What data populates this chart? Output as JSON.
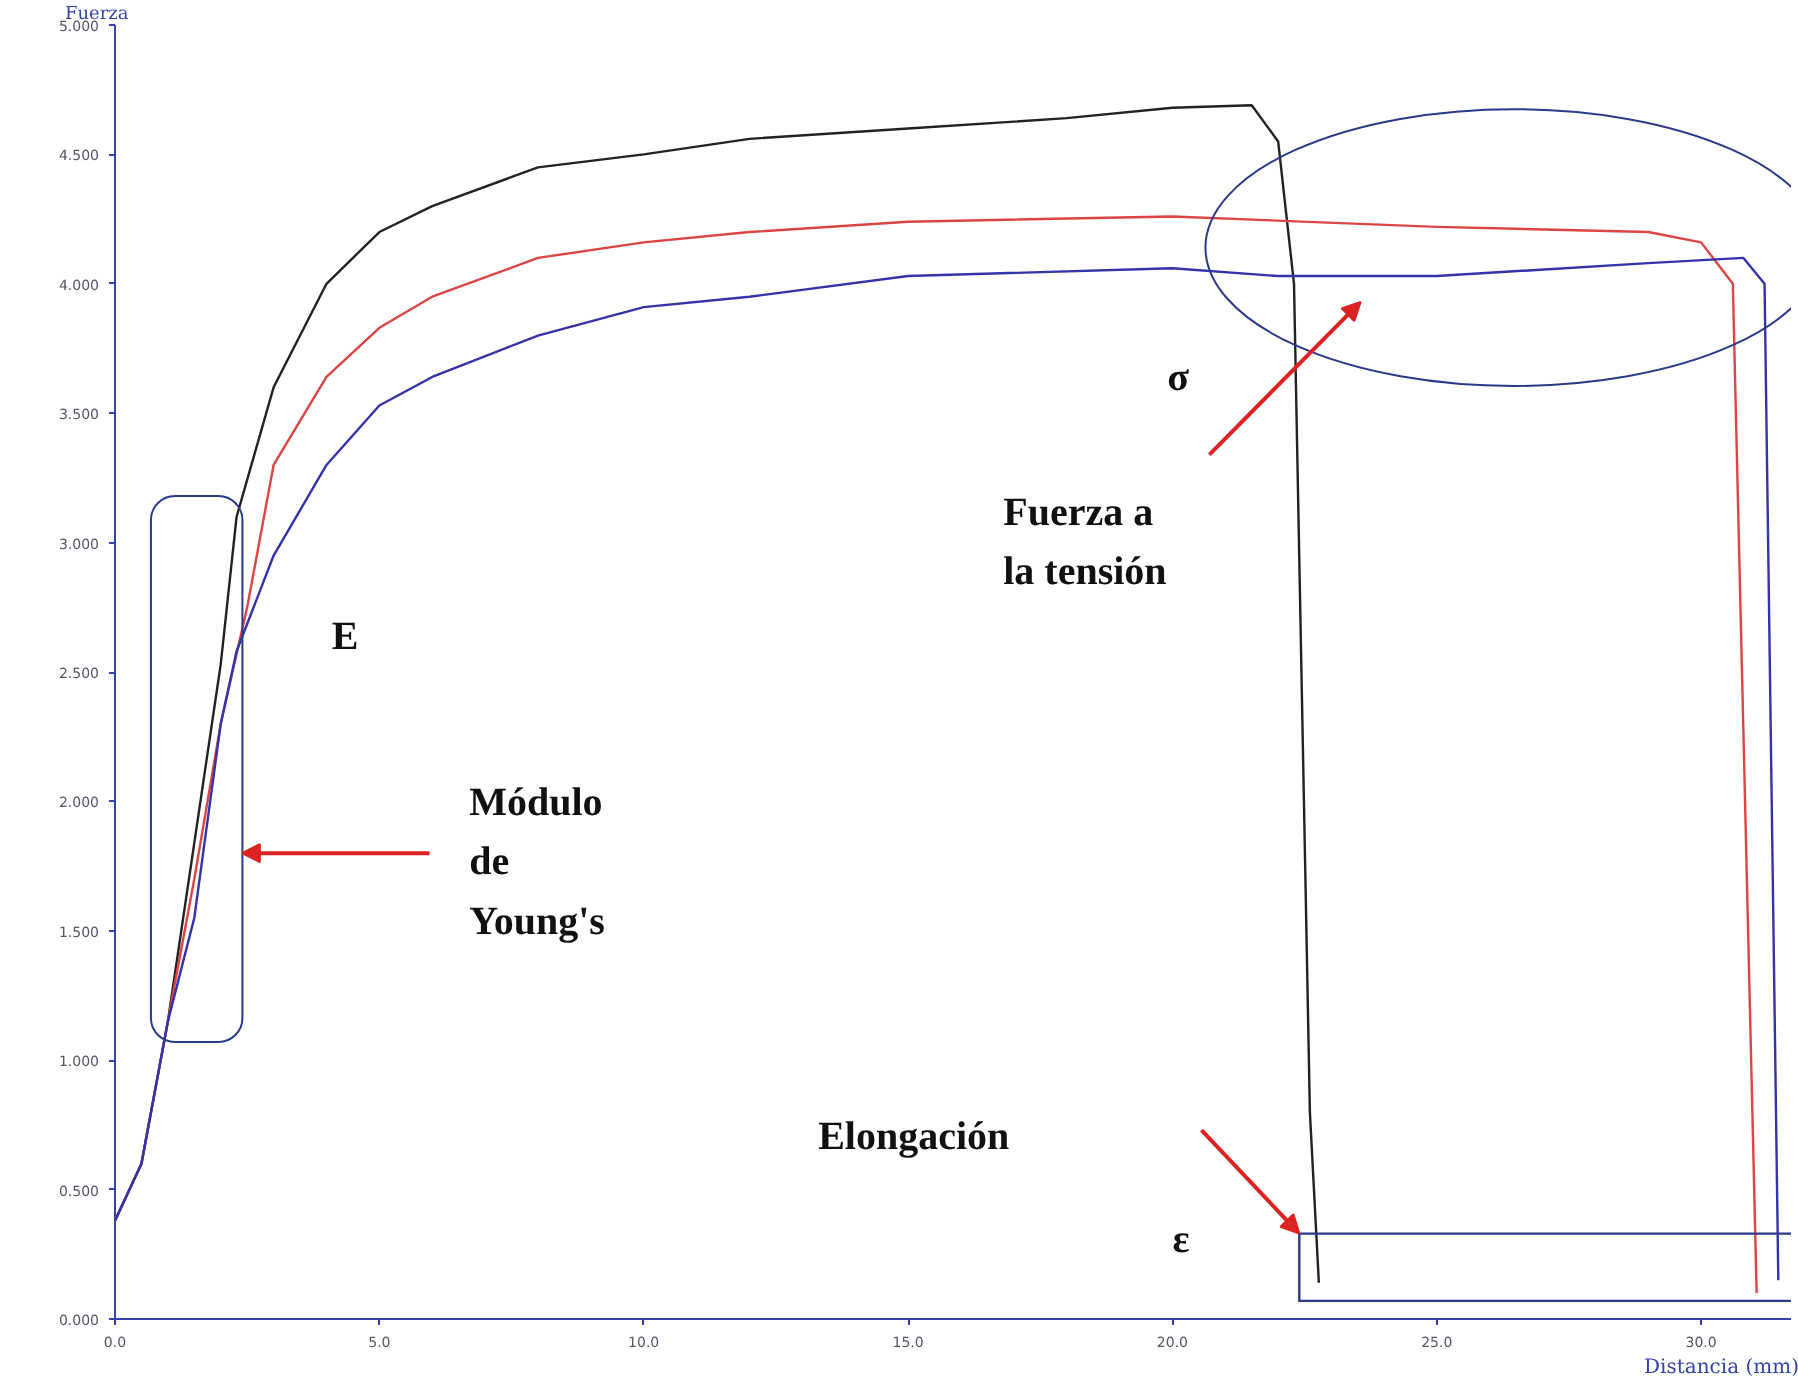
{
  "chart_data": {
    "type": "line",
    "xlabel": "Distancia (mm)",
    "ylabel": "Fuerza",
    "xlim": [
      0,
      31.7
    ],
    "ylim": [
      0,
      5
    ],
    "xticks": [
      {
        "value": 0,
        "label": "0.0"
      },
      {
        "value": 5,
        "label": "5.0"
      },
      {
        "value": 10,
        "label": "10.0"
      },
      {
        "value": 15,
        "label": "15.0"
      },
      {
        "value": 20,
        "label": "20.0"
      },
      {
        "value": 25,
        "label": "25.0"
      },
      {
        "value": 30,
        "label": "30.0"
      }
    ],
    "yticks": [
      {
        "value": 0,
        "label": "0.000"
      },
      {
        "value": 0.5,
        "label": "0.500"
      },
      {
        "value": 1,
        "label": "1.000"
      },
      {
        "value": 1.5,
        "label": "1.500"
      },
      {
        "value": 2,
        "label": "2.000"
      },
      {
        "value": 2.5,
        "label": "2.500"
      },
      {
        "value": 3,
        "label": "3.000"
      },
      {
        "value": 3.5,
        "label": "3.500"
      },
      {
        "value": 4,
        "label": "4.000"
      },
      {
        "value": 4.5,
        "label": "4.500"
      },
      {
        "value": 5,
        "label": "5.000"
      }
    ],
    "grid": false,
    "series": [
      {
        "color": "#222222",
        "x": [
          0,
          0.5,
          1,
          1.5,
          2,
          2.3,
          3,
          4,
          5,
          6,
          8,
          10,
          12,
          15,
          18,
          20,
          21.5,
          22,
          22.3,
          22.6,
          22.77
        ],
        "values": [
          0.38,
          0.6,
          1.15,
          1.84,
          2.53,
          3.1,
          3.6,
          4.0,
          4.2,
          4.3,
          4.45,
          4.5,
          4.56,
          4.6,
          4.64,
          4.68,
          4.69,
          4.55,
          4.0,
          0.8,
          0.14
        ]
      },
      {
        "color": "#dd4444",
        "x": [
          0,
          0.5,
          1,
          1.5,
          2,
          2.5,
          3,
          4,
          5,
          6,
          8,
          10,
          12,
          15,
          20,
          25,
          29,
          30,
          30.6,
          31.05
        ],
        "values": [
          0.38,
          0.6,
          1.15,
          1.7,
          2.3,
          2.75,
          3.3,
          3.64,
          3.83,
          3.95,
          4.1,
          4.16,
          4.2,
          4.24,
          4.26,
          4.22,
          4.2,
          4.16,
          4.0,
          0.1
        ]
      },
      {
        "color": "#2a3a8a",
        "x": [
          31.7,
          22.4,
          22.4,
          31.7
        ],
        "values": [
          0.33,
          0.33,
          0.07,
          0.07
        ]
      },
      {
        "color": "#3333aa",
        "x": [
          0,
          0.5,
          1,
          1.5,
          2,
          2.3,
          3,
          4,
          5,
          6,
          8,
          10,
          12,
          15,
          20,
          22,
          25,
          29,
          30.8,
          31.2,
          31.46
        ],
        "values": [
          0.38,
          0.6,
          1.15,
          1.55,
          2.3,
          2.58,
          2.95,
          3.3,
          3.53,
          3.64,
          3.8,
          3.91,
          3.95,
          4.03,
          4.06,
          4.03,
          4.03,
          4.08,
          4.1,
          4.0,
          0.15
        ]
      }
    ],
    "annotations": [
      "E",
      "Módulo de Young's",
      "σ",
      "Fuerza a la tensión",
      "Elongación",
      "ε"
    ]
  }
}
